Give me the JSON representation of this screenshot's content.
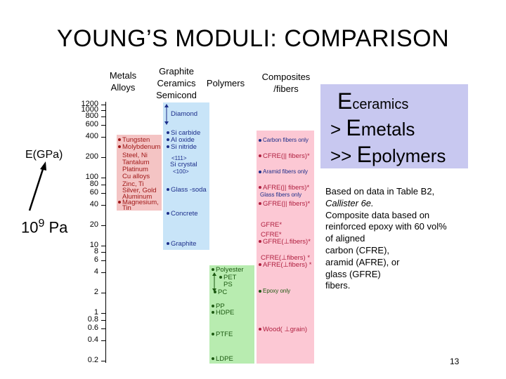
{
  "title": "YOUNG’S MODULI:  COMPARISON",
  "columns": {
    "metals": [
      "Metals",
      "Alloys"
    ],
    "ceramics": [
      "Graphite",
      "Ceramics",
      "Semicond"
    ],
    "polymers": [
      "Polymers"
    ],
    "composites": [
      "Composites",
      "/fibers"
    ]
  },
  "axis": {
    "label": "E(GPa)",
    "unit_base": "10",
    "unit_exp": "9",
    "unit_rest": " Pa",
    "ticks": [
      "1200",
      "1000",
      "800",
      "600",
      "400",
      "200",
      "100",
      "80",
      "60",
      "40",
      "20",
      "10",
      "8",
      "6",
      "4",
      "2",
      "1",
      "0.8",
      "0.6",
      "0.4",
      "0.2"
    ]
  },
  "equation": {
    "line1_E": "E",
    "line1_sub": "ceramics",
    "line2_op": ">",
    "line2_E": "E",
    "line2_sub": "metals",
    "line3_op": ">>",
    "line3_E": "E",
    "line3_sub": "polymers"
  },
  "note": {
    "l1": "Based on data in Table B2,",
    "l2": "Callister 6e.",
    "l3": "Composite data based on",
    "l4": "reinforced epoxy with 60 vol%",
    "l5": "of aligned",
    "l6": "carbon (CFRE),",
    "l7": "aramid (AFRE), or",
    "l8": "glass (GFRE)",
    "l9": "fibers."
  },
  "metals": {
    "m1": "Tungsten",
    "m2": "Molybdenum",
    "m3": "Steel, Ni",
    "m4": "Tantalum",
    "m5": "Platinum",
    "m6": "Cu alloys",
    "m7": "Zinc, Ti",
    "m8": "Silver, Gold",
    "m9": "Aluminum",
    "m10": "Magnesium,",
    "m11": "Tin"
  },
  "ceramics": {
    "c1": "Diamond",
    "c2": "Si carbide",
    "c3": "Al oxide",
    "c4": "Si nitride",
    "c5": "<111>",
    "c6": "Si crystal",
    "c7": "<100>",
    "c8": "Glass -soda",
    "c9": "Concrete",
    "c10": "Graphite"
  },
  "polymers": {
    "p1": "Polyester",
    "p2": "PET",
    "p3": "PS",
    "p4": "PC",
    "p5": "PP",
    "p6": "HDPE",
    "p7": "PTFE",
    "p8": "LDPE"
  },
  "composites": {
    "f1": "Carbon fibers only",
    "f2": "CFRE(|| fibers)*",
    "f3": "Aramid fibers only",
    "f4": "AFRE(|| fibers)*",
    "f5": "Glass fibers only",
    "f6": "GFRE(|| fibers)*",
    "f7": "GFRE*",
    "f8": "CFRE*",
    "f9": "GFRE(⊥fibers)*",
    "f10": "CFRE(⊥fibers) *",
    "f11": "AFRE(⊥fibers) *",
    "f12": "Epoxy only",
    "f13": "Wood( ⊥grain)"
  },
  "page_number": "13",
  "colors": {
    "metals_band": "#f4c4c4",
    "ceramics_band": "#c8e4f8",
    "polymers_band": "#b8ecb0",
    "composites_band": "#fcc8d4",
    "equation_box": "#c8c8f0"
  }
}
